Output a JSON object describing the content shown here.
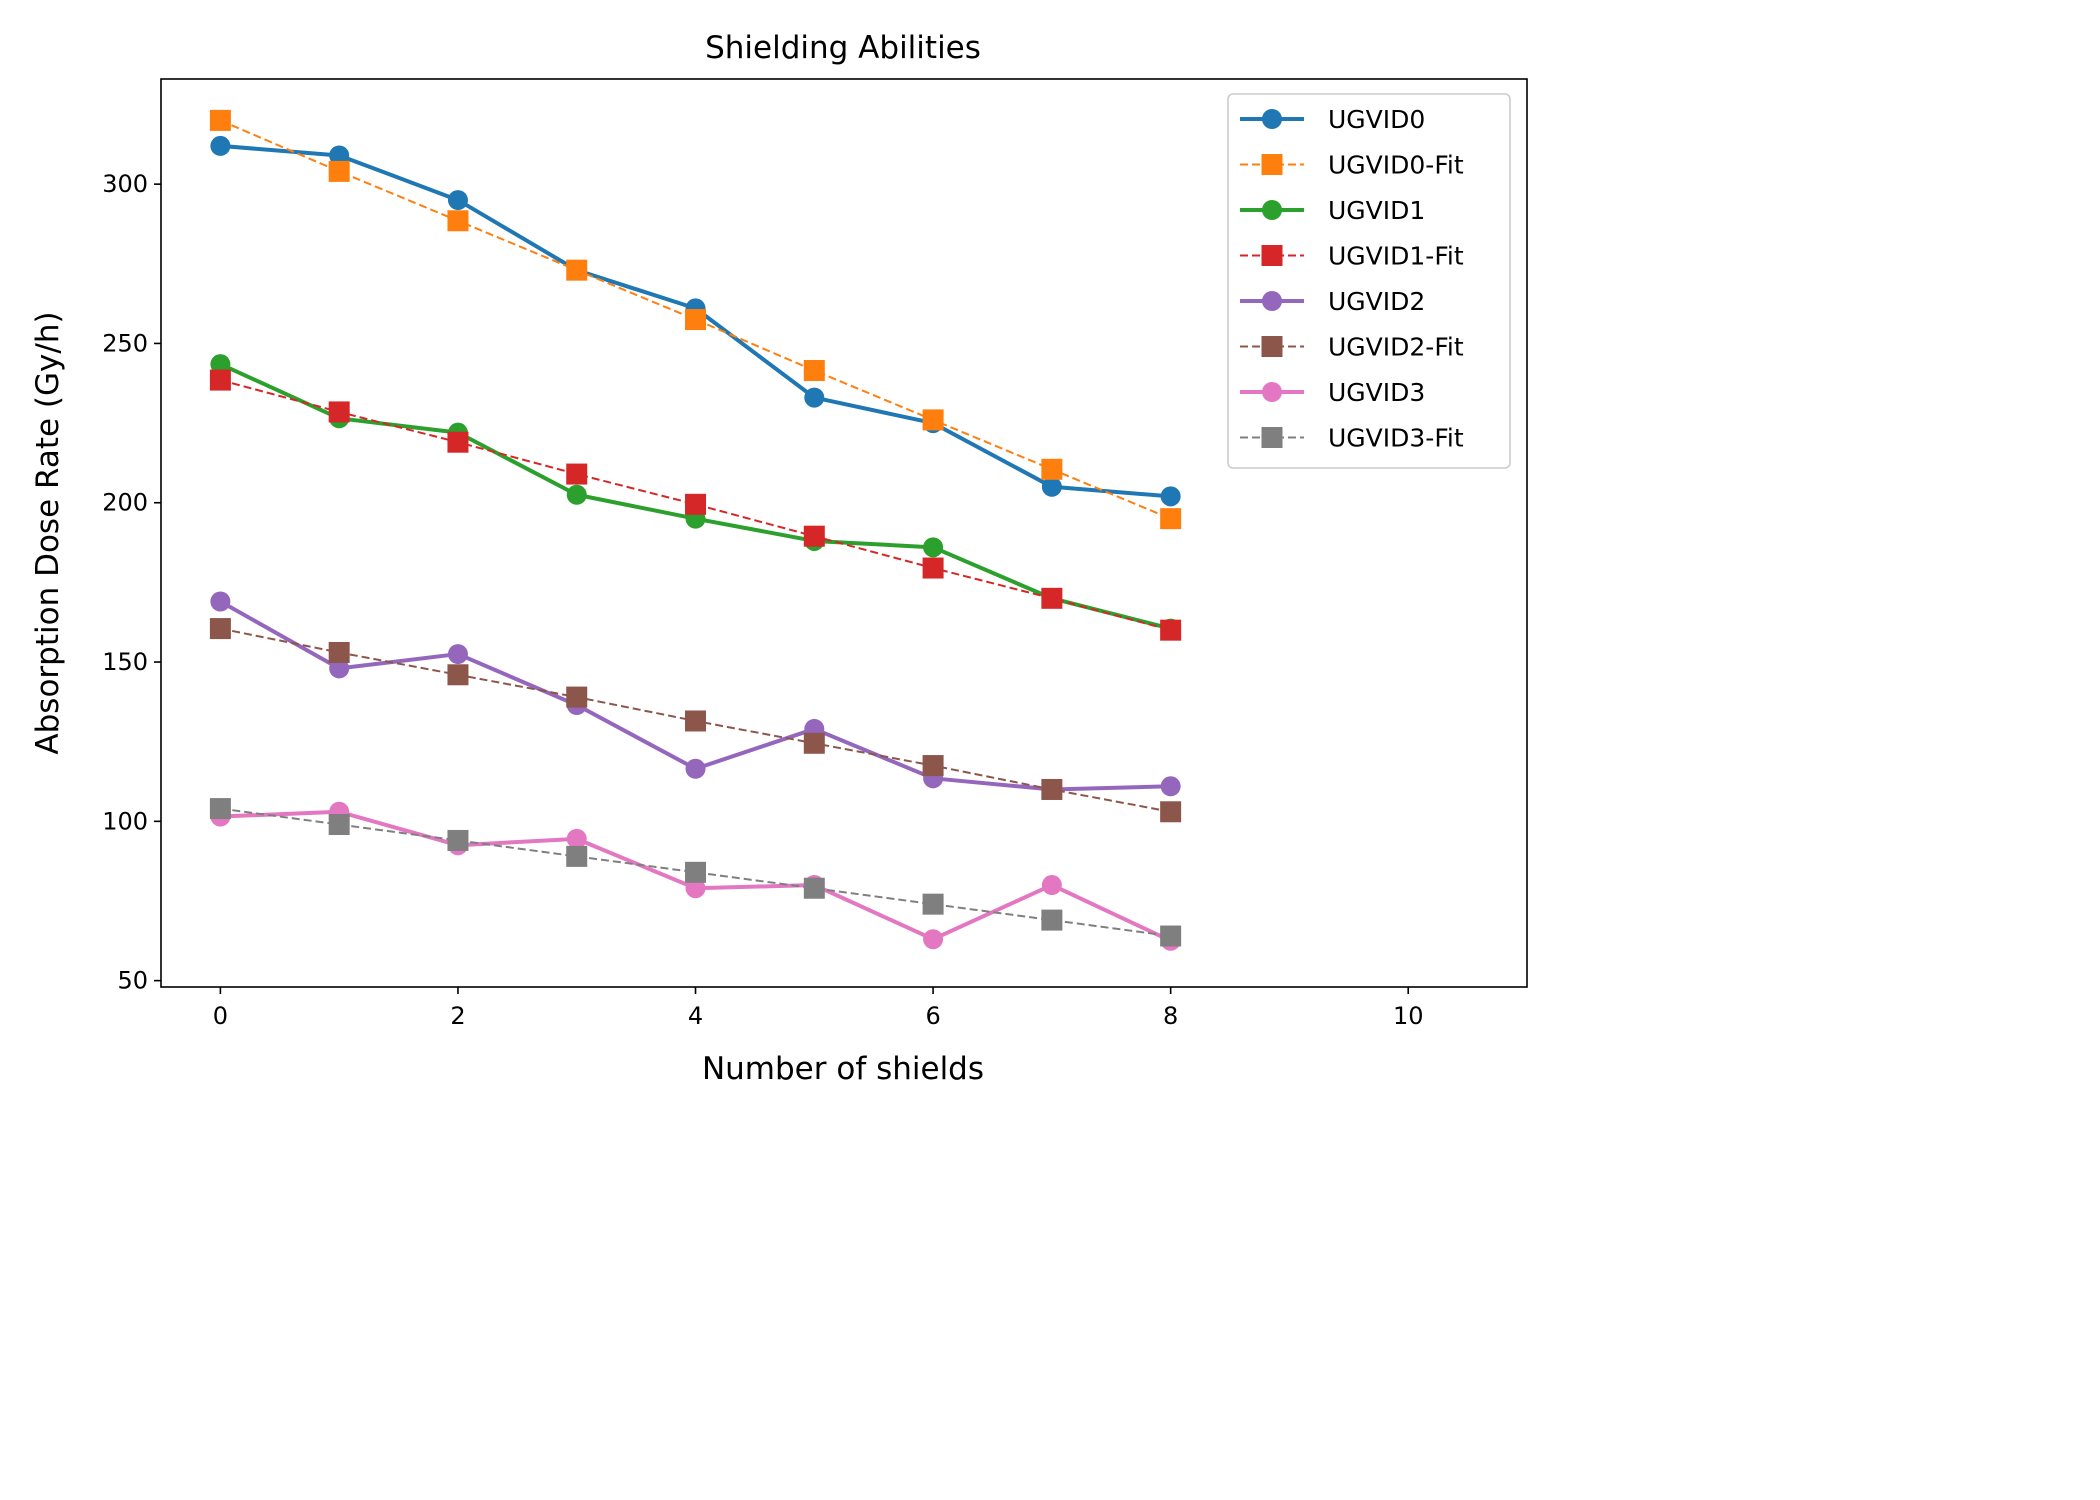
{
  "chart_data": {
    "type": "line",
    "title": "Shielding Abilities",
    "xlabel": "Number of shields",
    "ylabel": "Absorption Dose Rate (Gy/h)",
    "xlim": [
      -0.5,
      11
    ],
    "ylim": [
      48,
      333
    ],
    "xticks": [
      0,
      2,
      4,
      6,
      8,
      10
    ],
    "yticks": [
      50,
      100,
      150,
      200,
      250,
      300
    ],
    "grid": false,
    "legend_position": "upper-right",
    "x": [
      0,
      1,
      2,
      3,
      4,
      5,
      6,
      7,
      8
    ],
    "series": [
      {
        "name": "UGVID0",
        "color": "#1f77b4",
        "style": "solid",
        "marker": "circle",
        "values": [
          312,
          309,
          295,
          273,
          261,
          233,
          225,
          205,
          202
        ]
      },
      {
        "name": "UGVID0-Fit",
        "color": "#ff7f0e",
        "style": "dashed",
        "marker": "square",
        "values": [
          320,
          304,
          288.5,
          273,
          257.5,
          241.5,
          226,
          210.5,
          195
        ]
      },
      {
        "name": "UGVID1",
        "color": "#2ca02c",
        "style": "solid",
        "marker": "circle",
        "values": [
          243.5,
          226.5,
          222,
          202.5,
          195,
          188,
          186,
          170,
          160.5
        ]
      },
      {
        "name": "UGVID1-Fit",
        "color": "#d62728",
        "style": "dashed",
        "marker": "square",
        "values": [
          238.5,
          228.5,
          219,
          209,
          199.5,
          189.5,
          179.5,
          170,
          160
        ]
      },
      {
        "name": "UGVID2",
        "color": "#9467bd",
        "style": "solid",
        "marker": "circle",
        "values": [
          169,
          148,
          152.5,
          136.5,
          116.5,
          129,
          113.5,
          110,
          111
        ]
      },
      {
        "name": "UGVID2-Fit",
        "color": "#8c564b",
        "style": "dashed",
        "marker": "square",
        "values": [
          160.5,
          153,
          146,
          139,
          131.5,
          124.5,
          117.5,
          110,
          103
        ]
      },
      {
        "name": "UGVID3",
        "color": "#e377c2",
        "style": "solid",
        "marker": "circle",
        "values": [
          101.5,
          103,
          92.5,
          94.5,
          79,
          80,
          63,
          80,
          62.5
        ]
      },
      {
        "name": "UGVID3-Fit",
        "color": "#7f7f7f",
        "style": "dashed",
        "marker": "square",
        "values": [
          104,
          99,
          94,
          89,
          84,
          79,
          74,
          69,
          64
        ]
      }
    ]
  }
}
